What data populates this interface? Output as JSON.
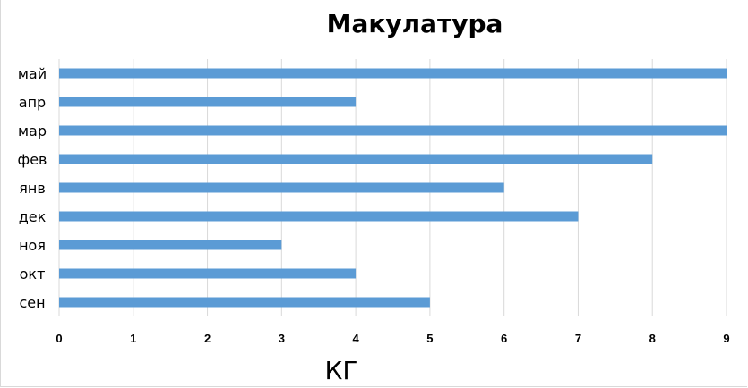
{
  "chart_data": {
    "type": "bar",
    "orientation": "horizontal",
    "title": "Макулатура",
    "xlabel": "КГ",
    "ylabel": "",
    "categories": [
      "сен",
      "окт",
      "ноя",
      "дек",
      "янв",
      "фев",
      "мар",
      "апр",
      "май"
    ],
    "values": [
      5,
      4,
      3,
      7,
      6,
      8,
      9,
      4,
      9
    ],
    "xlim": [
      0,
      9
    ],
    "xticks": [
      "0",
      "1",
      "2",
      "3",
      "4",
      "5",
      "6",
      "7",
      "8",
      "9"
    ],
    "grid": "vertical",
    "legend": "none",
    "bar_color": "#5b9bd5"
  }
}
